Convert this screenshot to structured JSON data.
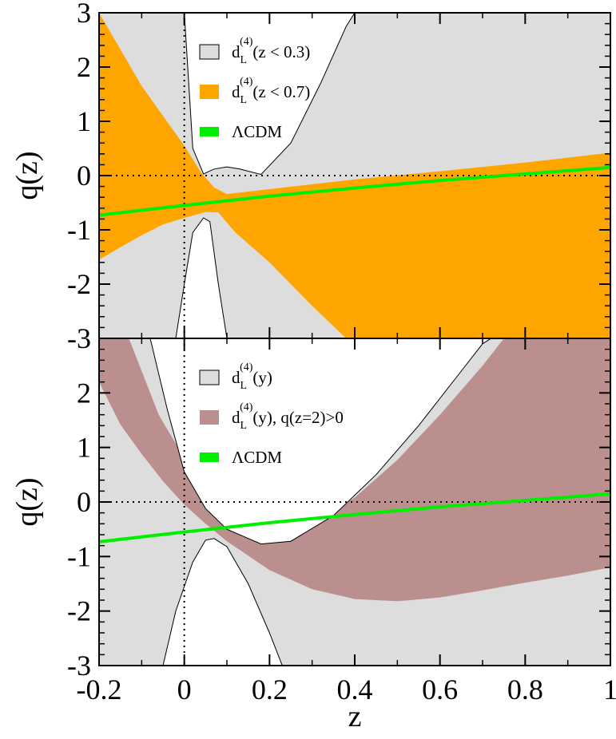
{
  "chart_data": [
    {
      "type": "area",
      "panel": "top",
      "xlabel": "",
      "ylabel": "q(z)",
      "xlim": [
        -0.2,
        1.0
      ],
      "ylim": [
        -3,
        3
      ],
      "xticks": [
        "-0.2",
        "0",
        "0.2",
        "0.4",
        "0.6",
        "0.8",
        "1"
      ],
      "yticks": [
        "3",
        "2",
        "1",
        "0",
        "-1",
        "-2",
        "-3"
      ],
      "reference_lines": {
        "y": 0,
        "x": 0,
        "style": "dotted"
      },
      "legend": {
        "position": "top-center",
        "entries": [
          {
            "base": "d",
            "sub": "L",
            "sup": "(4)",
            "text": "(z < 0.3)",
            "color": "#dddddd"
          },
          {
            "base": "d",
            "sub": "L",
            "sup": "(4)",
            "text": "(z < 0.7)",
            "color": "#ffa500"
          },
          {
            "base": "",
            "sub": "",
            "sup": "",
            "text": "ΛCDM",
            "color": "#00ee00"
          }
        ]
      },
      "series": [
        {
          "color": "#dddddd",
          "kind": "band",
          "upper": [
            [
              -0.2,
              3
            ],
            [
              0.02,
              3
            ]
          ],
          "hole_upper": [
            [
              0.0,
              3.0
            ],
            [
              0.02,
              0.5
            ],
            [
              0.045,
              0.03
            ],
            [
              0.07,
              0.12
            ],
            [
              0.1,
              0.16
            ],
            [
              0.13,
              0.12
            ],
            [
              0.18,
              0.02
            ],
            [
              0.25,
              0.6
            ],
            [
              0.32,
              1.7
            ],
            [
              0.38,
              2.75
            ],
            [
              0.4,
              3.0
            ]
          ],
          "hole_lower": [
            [
              -0.02,
              -3.0
            ],
            [
              0.0,
              -2.0
            ],
            [
              0.02,
              -1.05
            ],
            [
              0.045,
              -0.78
            ],
            [
              0.06,
              -0.85
            ],
            [
              0.08,
              -2.0
            ],
            [
              0.1,
              -3.0
            ]
          ]
        },
        {
          "color": "#ffa500",
          "kind": "band",
          "upper": [
            [
              -0.2,
              3.0
            ],
            [
              -0.1,
              1.65
            ],
            [
              0.0,
              0.55
            ],
            [
              0.04,
              0.05
            ],
            [
              0.07,
              -0.22
            ],
            [
              0.1,
              -0.34
            ],
            [
              0.2,
              -0.25
            ],
            [
              0.4,
              -0.07
            ],
            [
              0.6,
              0.08
            ],
            [
              0.8,
              0.24
            ],
            [
              1.0,
              0.42
            ]
          ],
          "lower": [
            [
              -0.2,
              -1.55
            ],
            [
              -0.15,
              -1.32
            ],
            [
              -0.1,
              -1.1
            ],
            [
              -0.05,
              -0.9
            ],
            [
              0.0,
              -0.78
            ],
            [
              0.05,
              -0.67
            ],
            [
              0.08,
              -0.68
            ],
            [
              0.12,
              -1.05
            ],
            [
              0.2,
              -1.6
            ],
            [
              0.3,
              -2.4
            ],
            [
              0.38,
              -3.0
            ],
            [
              1.0,
              -3.0
            ]
          ]
        },
        {
          "name": "ΛCDM",
          "color": "#00ee00",
          "kind": "line",
          "points": [
            [
              -0.2,
              -0.73
            ],
            [
              0.0,
              -0.55
            ],
            [
              0.2,
              -0.38
            ],
            [
              0.4,
              -0.23
            ],
            [
              0.6,
              -0.09
            ],
            [
              0.8,
              0.03
            ],
            [
              1.0,
              0.15
            ]
          ]
        }
      ]
    },
    {
      "type": "area",
      "panel": "bottom",
      "xlabel": "z",
      "ylabel": "q(z)",
      "xlim": [
        -0.2,
        1.0
      ],
      "ylim": [
        -3,
        3
      ],
      "xticks": [
        "-0.2",
        "0",
        "0.2",
        "0.4",
        "0.6",
        "0.8",
        "1"
      ],
      "yticks": [
        "2",
        "1",
        "0",
        "-1",
        "-2",
        "-3"
      ],
      "reference_lines": {
        "y": 0,
        "x": 0,
        "style": "dotted"
      },
      "legend": {
        "position": "top-center",
        "entries": [
          {
            "base": "d",
            "sub": "L",
            "sup": "(4)",
            "text": "(y)",
            "color": "#dddddd"
          },
          {
            "base": "d",
            "sub": "L",
            "sup": "(4)",
            "text": "(y), q(z=2)>0",
            "color": "#bc8f8f"
          },
          {
            "base": "",
            "sub": "",
            "sup": "",
            "text": "ΛCDM",
            "color": "#00ee00"
          }
        ]
      },
      "series": [
        {
          "color": "#dddddd",
          "kind": "band",
          "hole_upper": [
            [
              -0.08,
              3.0
            ],
            [
              -0.04,
              1.7
            ],
            [
              0.0,
              0.55
            ],
            [
              0.05,
              -0.12
            ],
            [
              0.1,
              -0.5
            ],
            [
              0.18,
              -0.77
            ],
            [
              0.25,
              -0.72
            ],
            [
              0.35,
              -0.25
            ],
            [
              0.45,
              0.5
            ],
            [
              0.55,
              1.4
            ],
            [
              0.65,
              2.4
            ],
            [
              0.7,
              2.9
            ],
            [
              0.72,
              3.0
            ]
          ],
          "hole_lower": [
            [
              -0.05,
              -3.0
            ],
            [
              -0.02,
              -2.0
            ],
            [
              0.02,
              -1.1
            ],
            [
              0.05,
              -0.7
            ],
            [
              0.07,
              -0.67
            ],
            [
              0.1,
              -0.82
            ],
            [
              0.15,
              -1.5
            ],
            [
              0.2,
              -2.4
            ],
            [
              0.23,
              -3.0
            ]
          ]
        },
        {
          "color": "#bc8f8f",
          "kind": "band",
          "upper": [
            [
              -0.2,
              3.0
            ],
            [
              -0.13,
              3.0
            ],
            [
              -0.06,
              1.6
            ],
            [
              0.0,
              0.8
            ],
            [
              0.05,
              0.05
            ],
            [
              0.1,
              -0.35
            ],
            [
              0.2,
              -0.68
            ],
            [
              0.3,
              -0.42
            ],
            [
              0.4,
              0.08
            ],
            [
              0.5,
              0.77
            ],
            [
              0.6,
              1.6
            ],
            [
              0.7,
              2.5
            ],
            [
              0.75,
              3.0
            ],
            [
              1.0,
              3.0
            ]
          ],
          "lower": [
            [
              -0.2,
              2.2
            ],
            [
              -0.15,
              1.42
            ],
            [
              -0.1,
              0.88
            ],
            [
              -0.05,
              0.38
            ],
            [
              0.0,
              -0.05
            ],
            [
              0.05,
              -0.4
            ],
            [
              0.1,
              -0.72
            ],
            [
              0.2,
              -1.25
            ],
            [
              0.3,
              -1.6
            ],
            [
              0.4,
              -1.78
            ],
            [
              0.5,
              -1.82
            ],
            [
              0.6,
              -1.75
            ],
            [
              0.7,
              -1.62
            ],
            [
              0.8,
              -1.48
            ],
            [
              0.9,
              -1.35
            ],
            [
              1.0,
              -1.2
            ]
          ]
        },
        {
          "name": "ΛCDM",
          "color": "#00ee00",
          "kind": "line",
          "points": [
            [
              -0.2,
              -0.73
            ],
            [
              0.0,
              -0.55
            ],
            [
              0.2,
              -0.38
            ],
            [
              0.4,
              -0.23
            ],
            [
              0.6,
              -0.09
            ],
            [
              0.8,
              0.03
            ],
            [
              1.0,
              0.15
            ]
          ]
        }
      ]
    }
  ]
}
